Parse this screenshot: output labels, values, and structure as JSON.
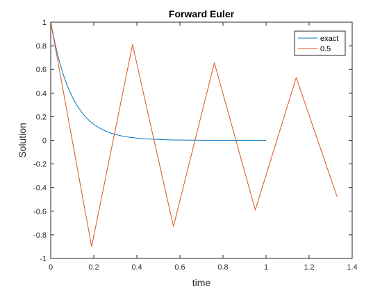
{
  "chart_data": {
    "type": "line",
    "title": "Forward Euler",
    "xlabel": "time",
    "ylabel": "Solution",
    "xlim": [
      0,
      1.4
    ],
    "ylim": [
      -1,
      1
    ],
    "xticks": [
      0,
      0.2,
      0.4,
      0.6,
      0.8,
      1,
      1.2,
      1.4
    ],
    "xtick_labels": [
      "0",
      "0.2",
      "0.4",
      "0.6",
      "0.8",
      "1",
      "1.2",
      "1.4"
    ],
    "yticks": [
      -1,
      -0.8,
      -0.6,
      -0.4,
      -0.2,
      0,
      0.2,
      0.4,
      0.6,
      0.8,
      1
    ],
    "ytick_labels": [
      "-1",
      "-0.8",
      "-0.6",
      "-0.4",
      "-0.2",
      "0",
      "0.2",
      "0.4",
      "0.6",
      "0.8",
      "1"
    ],
    "grid": false,
    "legend_position": "top-right",
    "series": [
      {
        "name": "exact",
        "color": "#0072BD",
        "x": [
          0,
          0.02,
          0.04,
          0.06,
          0.08,
          0.1,
          0.12,
          0.14,
          0.16,
          0.18,
          0.2,
          0.22,
          0.24,
          0.26,
          0.28,
          0.3,
          0.33,
          0.36,
          0.4,
          0.45,
          0.5,
          0.55,
          0.6,
          0.7,
          0.8,
          0.9,
          1.0
        ],
        "y": [
          1,
          0.819,
          0.67,
          0.549,
          0.449,
          0.368,
          0.301,
          0.247,
          0.202,
          0.165,
          0.135,
          0.111,
          0.091,
          0.074,
          0.061,
          0.05,
          0.037,
          0.027,
          0.018,
          0.011,
          0.007,
          0.004,
          0.002,
          0.001,
          0.0003,
          0.0001,
          5e-05
        ]
      },
      {
        "name": "0.5",
        "color": "#D95319",
        "x": [
          0,
          0.19,
          0.38,
          0.57,
          0.76,
          0.95,
          1.14,
          1.33
        ],
        "y": [
          1,
          -0.9,
          0.81,
          -0.729,
          0.656,
          -0.59,
          0.531,
          -0.478
        ]
      }
    ]
  }
}
